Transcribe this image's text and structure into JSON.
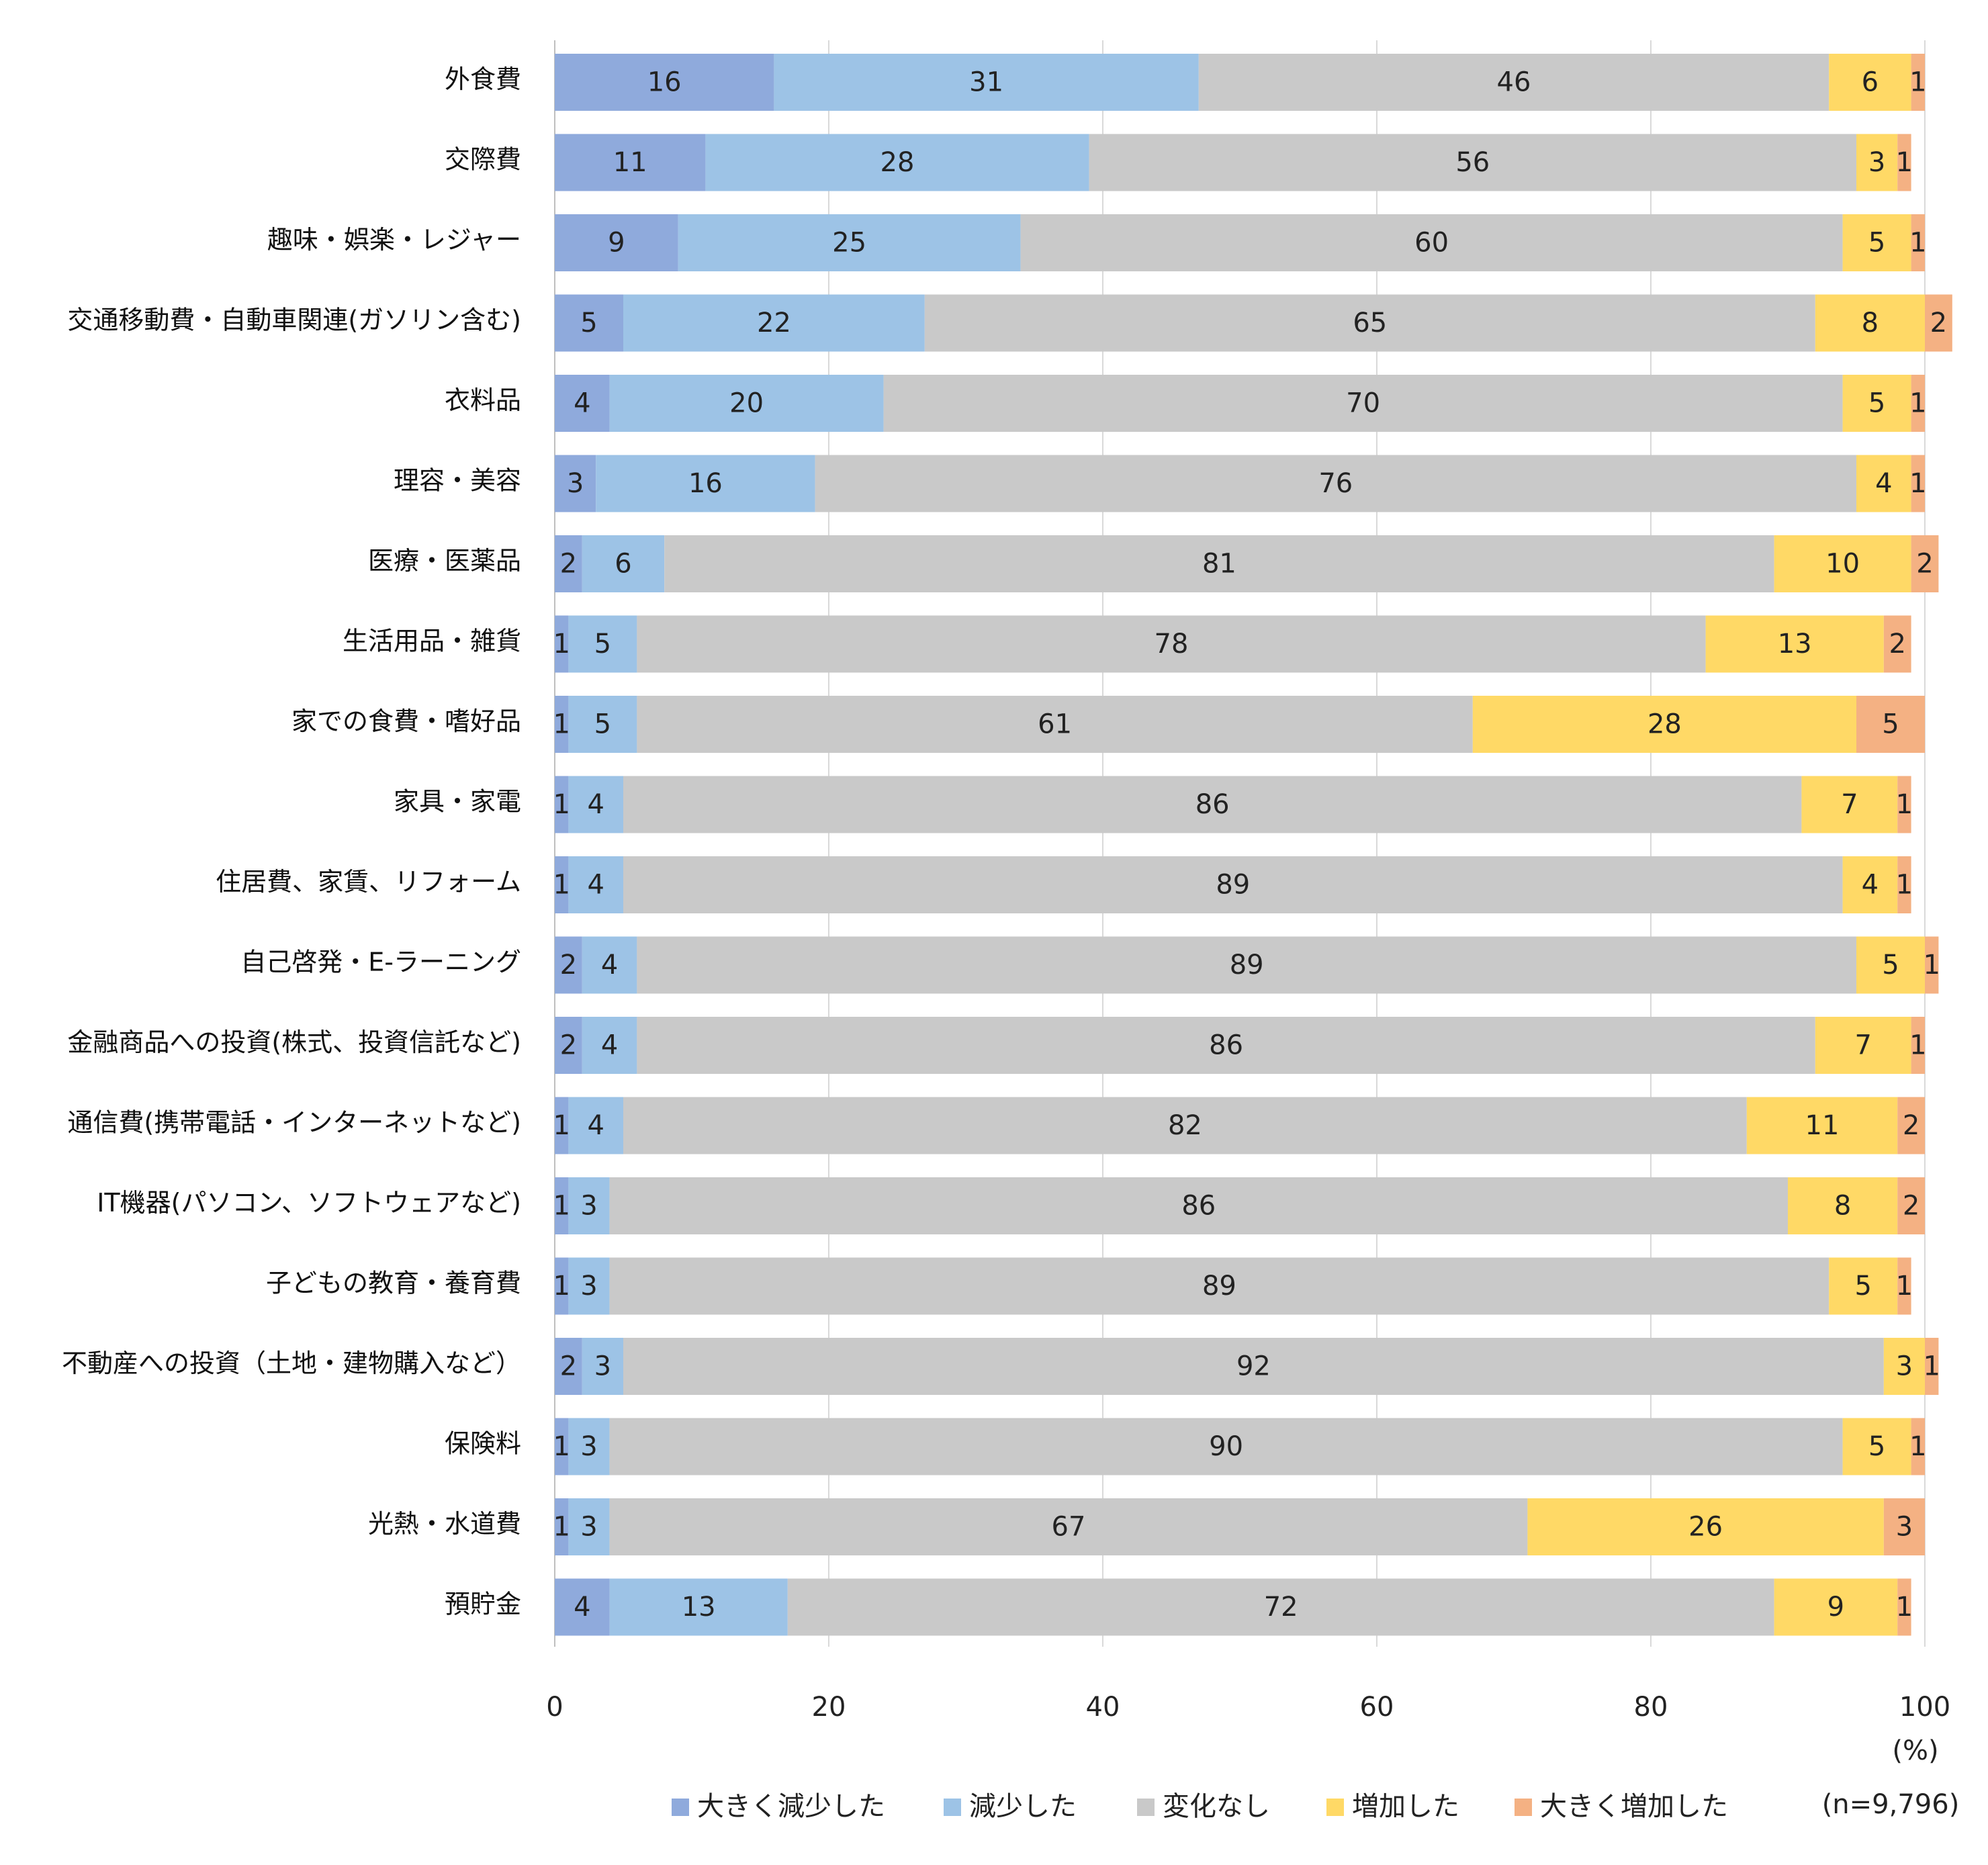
{
  "chart_data": {
    "type": "bar",
    "orientation": "horizontal",
    "stacked": true,
    "title": "",
    "xlabel": "",
    "ylabel": "",
    "xlim": [
      0,
      100
    ],
    "x_ticks": [
      0,
      20,
      40,
      60,
      80,
      100
    ],
    "unit_label": "(%)",
    "sample_note": "(n=9,796)",
    "grid": true,
    "legend_position": "bottom",
    "categories": [
      "外食費",
      "交際費",
      "趣味・娯楽・レジャー",
      "交通移動費・自動車関連(ガソリン含む)",
      "衣料品",
      "理容・美容",
      "医療・医薬品",
      "生活用品・雑貨",
      "家での食費・嗜好品",
      "家具・家電",
      "住居費、家賃、リフォーム",
      "自己啓発・E-ラーニング",
      "金融商品への投資(株式、投資信託など)",
      "通信費(携帯電話・インターネットなど)",
      "IT機器(パソコン、ソフトウェアなど)",
      "子どもの教育・養育費",
      "不動産への投資（土地・建物購入など）",
      "保険料",
      "光熱・水道費",
      "預貯金"
    ],
    "series": [
      {
        "name": "大きく減少した",
        "color": "#8faadc",
        "values": [
          16,
          11,
          9,
          5,
          4,
          3,
          2,
          1,
          1,
          1,
          1,
          2,
          2,
          1,
          1,
          1,
          2,
          1,
          1,
          4
        ]
      },
      {
        "name": "減少した",
        "color": "#9dc3e6",
        "values": [
          31,
          28,
          25,
          22,
          20,
          16,
          6,
          5,
          5,
          4,
          4,
          4,
          4,
          4,
          3,
          3,
          3,
          3,
          3,
          13
        ]
      },
      {
        "name": "変化なし",
        "color": "#c9c9c9",
        "values": [
          46,
          56,
          60,
          65,
          70,
          76,
          81,
          78,
          61,
          86,
          89,
          89,
          86,
          82,
          86,
          89,
          92,
          90,
          67,
          72
        ]
      },
      {
        "name": "増加した",
        "color": "#ffd966",
        "values": [
          6,
          3,
          5,
          8,
          5,
          4,
          10,
          13,
          28,
          7,
          4,
          5,
          7,
          11,
          8,
          5,
          3,
          5,
          26,
          9
        ]
      },
      {
        "name": "大きく増加した",
        "color": "#f4b183",
        "values": [
          1,
          1,
          1,
          2,
          1,
          1,
          2,
          2,
          5,
          1,
          1,
          1,
          1,
          2,
          2,
          1,
          1,
          1,
          3,
          1
        ]
      }
    ]
  }
}
